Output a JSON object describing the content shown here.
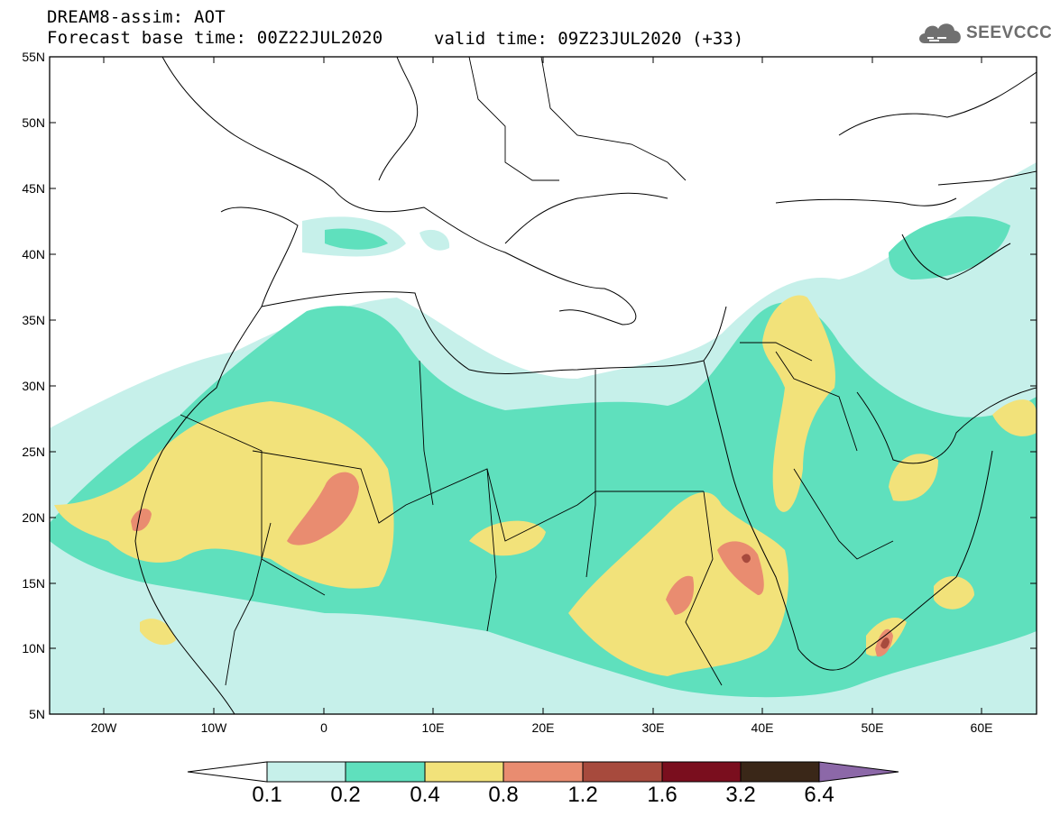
{
  "header": {
    "title_line1": "DREAM8-assim: AOT",
    "title_line2": "Forecast base time: 00Z22JUL2020",
    "valid_time": "valid time: 09Z23JUL2020 (+33)",
    "logo_text": "SEEVCCC",
    "logo_icon": "cloud-icon"
  },
  "map": {
    "lat_labels": [
      "55N",
      "50N",
      "45N",
      "40N",
      "35N",
      "30N",
      "25N",
      "20N",
      "15N",
      "10N",
      "5N"
    ],
    "lon_labels": [
      "20W",
      "10W",
      "0",
      "10E",
      "20E",
      "30E",
      "40E",
      "50E",
      "60E"
    ]
  },
  "legend": {
    "labels": [
      "0.1",
      "0.2",
      "0.4",
      "0.8",
      "1.2",
      "1.6",
      "3.2",
      "6.4"
    ],
    "colors": [
      "#ffffff",
      "#c6f0ea",
      "#5fe0bd",
      "#f2e27a",
      "#e98c70",
      "#a74a3d",
      "#7a0e1e",
      "#3a2718",
      "#8c68a8"
    ]
  }
}
